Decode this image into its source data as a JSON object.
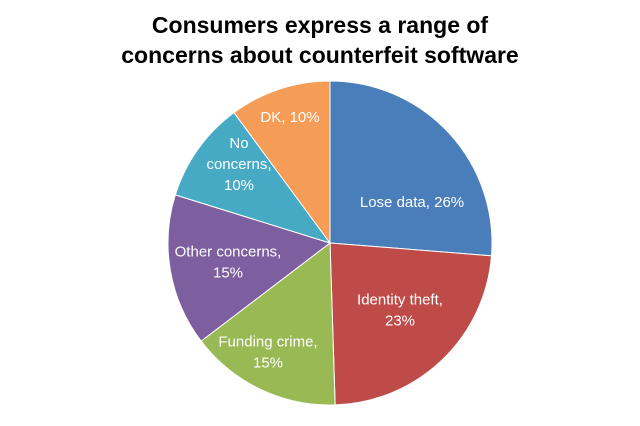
{
  "chart_data": {
    "type": "pie",
    "title_lines": [
      "Consumers express a range of",
      "concerns about counterfeit software"
    ],
    "slices": [
      {
        "label_lines": [
          "Lose data, 26%"
        ],
        "value": 26,
        "color": "#4A7EBB"
      },
      {
        "label_lines": [
          "Identity theft,",
          "23%"
        ],
        "value": 23,
        "color": "#BE4B48"
      },
      {
        "label_lines": [
          "Funding crime,",
          "15%"
        ],
        "value": 15,
        "color": "#98B954"
      },
      {
        "label_lines": [
          "Other concerns,",
          "15%"
        ],
        "value": 15,
        "color": "#7D5FA0"
      },
      {
        "label_lines": [
          "No",
          "concerns,",
          "10%"
        ],
        "value": 10,
        "color": "#46AAC5"
      },
      {
        "label_lines": [
          "DK, 10%"
        ],
        "value": 10,
        "color": "#F59D56"
      }
    ],
    "label_color": "#ffffff",
    "legend": "none"
  }
}
